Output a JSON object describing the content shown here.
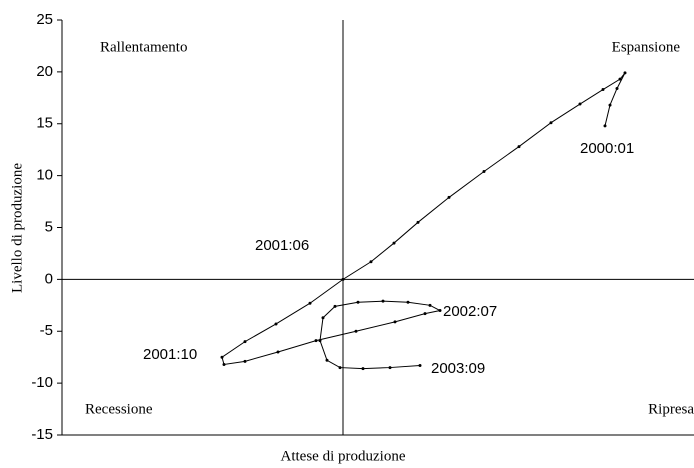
{
  "chart_data": {
    "type": "line",
    "xlabel": "Attese di produzione",
    "ylabel": "Livello di produzione",
    "ylim": [
      -15,
      25
    ],
    "yticks": [
      -15,
      -10,
      -5,
      0,
      5,
      10,
      15,
      20,
      25
    ],
    "xlim": [
      -28.1,
      35.1
    ],
    "color": "#000000",
    "x": [
      26.2,
      26.7,
      27.4,
      28.2,
      27.7,
      26.0,
      23.7,
      20.8,
      17.6,
      14.1,
      10.6,
      7.5,
      5.1,
      2.8,
      0,
      -3.3,
      -6.7,
      -9.8,
      -12.1,
      -11.9,
      -9.8,
      -6.5,
      -2.7,
      1.3,
      5.2,
      8.2,
      9.7,
      8.7,
      6.5,
      4.0,
      1.5,
      -0.8,
      -2.0,
      -2.3,
      -1.6,
      -0.3,
      2.0,
      4.7,
      7.7
    ],
    "values": [
      14.8,
      16.8,
      18.4,
      19.9,
      19.3,
      18.3,
      16.9,
      15.1,
      12.8,
      10.4,
      7.9,
      5.5,
      3.5,
      1.7,
      0,
      -2.3,
      -4.3,
      -6.0,
      -7.5,
      -8.2,
      -7.9,
      -7.0,
      -5.9,
      -5.0,
      -4.1,
      -3.3,
      -3.0,
      -2.5,
      -2.2,
      -2.1,
      -2.2,
      -2.6,
      -3.7,
      -5.9,
      -7.8,
      -8.5,
      -8.6,
      -8.5,
      -8.3
    ],
    "annotations": [
      "Rallentamento",
      "Espansione",
      "Recessione",
      "Ripresa",
      "2000:01",
      "2001:06",
      "2001:10",
      "2002:07",
      "2003:09"
    ]
  }
}
